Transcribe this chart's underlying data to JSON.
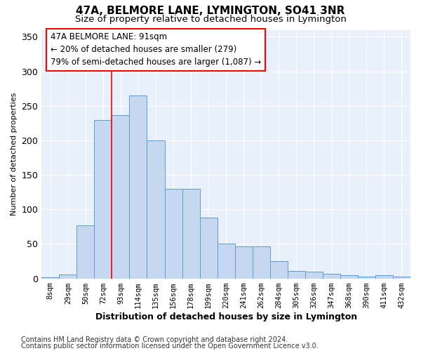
{
  "title": "47A, BELMORE LANE, LYMINGTON, SO41 3NR",
  "subtitle": "Size of property relative to detached houses in Lymington",
  "xlabel": "Distribution of detached houses by size in Lymington",
  "ylabel": "Number of detached properties",
  "footnote1": "Contains HM Land Registry data © Crown copyright and database right 2024.",
  "footnote2": "Contains public sector information licensed under the Open Government Licence v3.0.",
  "bin_labels": [
    "8sqm",
    "29sqm",
    "50sqm",
    "72sqm",
    "93sqm",
    "114sqm",
    "135sqm",
    "156sqm",
    "178sqm",
    "199sqm",
    "220sqm",
    "241sqm",
    "262sqm",
    "284sqm",
    "305sqm",
    "326sqm",
    "347sqm",
    "368sqm",
    "390sqm",
    "411sqm",
    "432sqm"
  ],
  "bar_heights": [
    2,
    6,
    77,
    229,
    236,
    265,
    200,
    130,
    130,
    88,
    50,
    46,
    46,
    25,
    11,
    10,
    7,
    5,
    3,
    5,
    3
  ],
  "bar_color": "#c5d8f0",
  "bar_edgecolor": "#5b9bd5",
  "ref_line_x": 3.5,
  "annotation_line1": "47A BELMORE LANE: 91sqm",
  "annotation_line2": "← 20% of detached houses are smaller (279)",
  "annotation_line3": "79% of semi-detached houses are larger (1,087) →",
  "ylim": [
    0,
    360
  ],
  "yticks": [
    0,
    50,
    100,
    150,
    200,
    250,
    300,
    350
  ],
  "bg_color": "#e8f0fb",
  "grid_color": "#ffffff",
  "title_fontsize": 11,
  "subtitle_fontsize": 9.5,
  "ylabel_fontsize": 8,
  "xlabel_fontsize": 9,
  "tick_fontsize": 7.5,
  "ann_fontsize": 8.5,
  "footnote_fontsize": 7
}
